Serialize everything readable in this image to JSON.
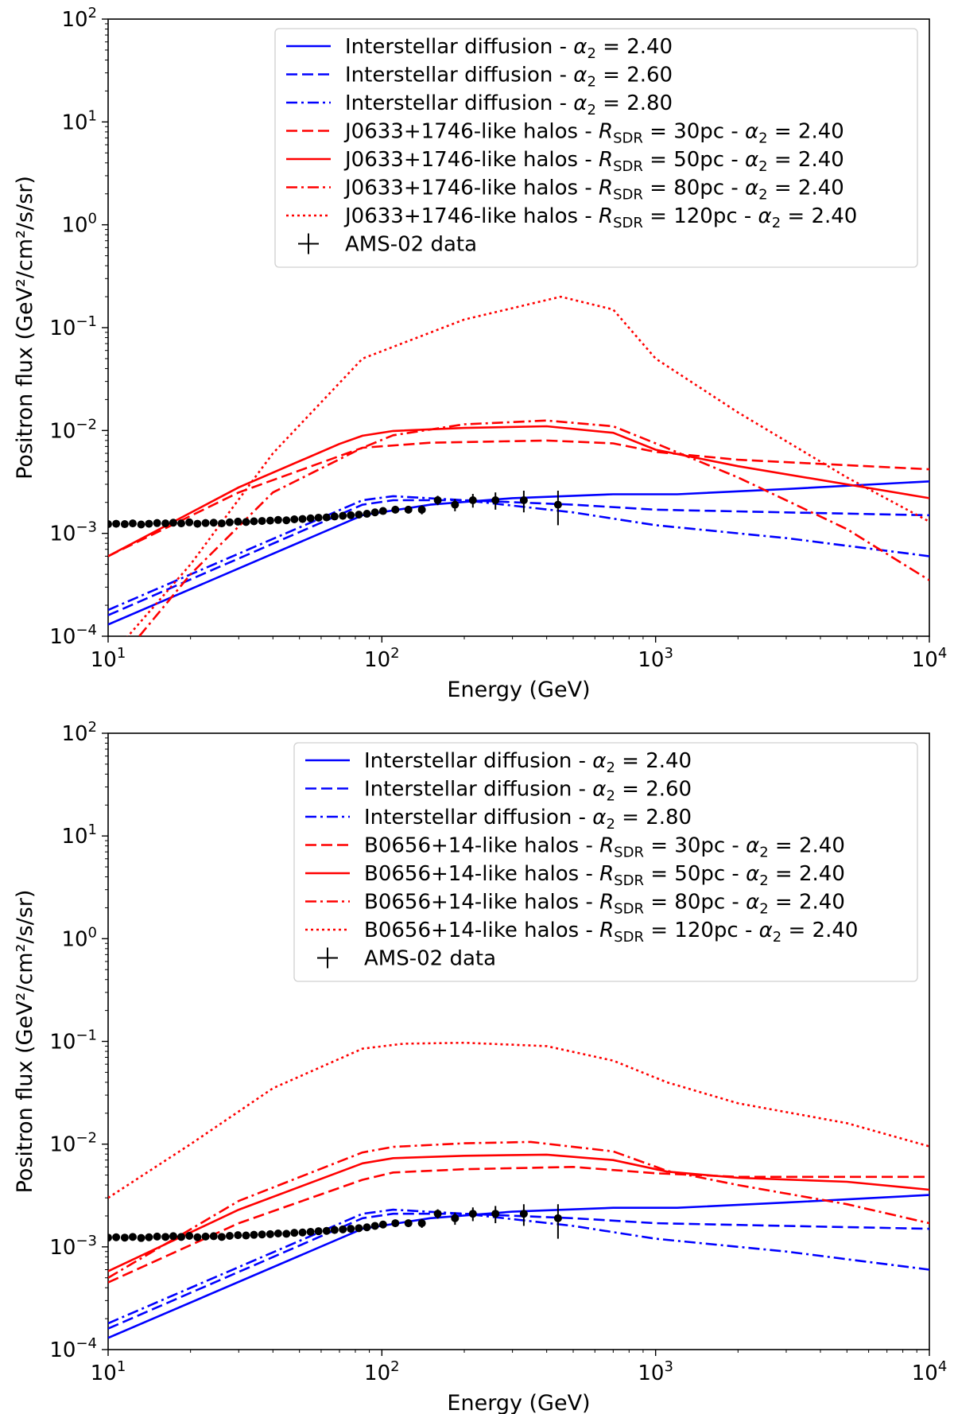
{
  "chart_data": [
    {
      "type": "line",
      "xscale": "log",
      "yscale": "log",
      "xlim": [
        10,
        10000
      ],
      "ylim": [
        0.0001,
        100
      ],
      "xlabel": "Energy (GeV)",
      "ylabel": "Positron flux (GeV²/cm²/s/sr)",
      "x_ticks": [
        {
          "value": 10,
          "base": "10",
          "exp": "1"
        },
        {
          "value": 100,
          "base": "10",
          "exp": "2"
        },
        {
          "value": 1000,
          "base": "10",
          "exp": "3"
        },
        {
          "value": 10000,
          "base": "10",
          "exp": "4"
        }
      ],
      "y_ticks": [
        {
          "value": 0.0001,
          "base": "10",
          "exp": "−4"
        },
        {
          "value": 0.001,
          "base": "10",
          "exp": "−3"
        },
        {
          "value": 0.01,
          "base": "10",
          "exp": "−2"
        },
        {
          "value": 0.1,
          "base": "10",
          "exp": "−1"
        },
        {
          "value": 1,
          "base": "10",
          "exp": "0"
        },
        {
          "value": 10,
          "base": "10",
          "exp": "1"
        },
        {
          "value": 100,
          "base": "10",
          "exp": "2"
        }
      ],
      "legend_position": "top-right",
      "series": [
        {
          "id": "isd-240",
          "prefix": "Interstellar diffusion - ",
          "sub_base": "",
          "sub": "",
          "mid": "",
          "alpha_val": "2.40",
          "color": "#0000ff",
          "style": "solid",
          "x": [
            10,
            85,
            150,
            300,
            700,
            1200,
            3000,
            10000
          ],
          "y": [
            0.00013,
            0.0015,
            0.0019,
            0.0022,
            0.0024,
            0.0024,
            0.0027,
            0.0032
          ]
        },
        {
          "id": "isd-260",
          "prefix": "Interstellar diffusion - ",
          "sub_base": "",
          "sub": "",
          "mid": "",
          "alpha_val": "2.60",
          "color": "#0000ff",
          "style": "dashed",
          "x": [
            10,
            85,
            110,
            200,
            500,
            1000,
            3000,
            10000
          ],
          "y": [
            0.00016,
            0.0019,
            0.0021,
            0.0021,
            0.0019,
            0.0017,
            0.0016,
            0.0015
          ]
        },
        {
          "id": "isd-280",
          "prefix": "Interstellar diffusion - ",
          "sub_base": "",
          "sub": "",
          "mid": "",
          "alpha_val": "2.80",
          "color": "#0000ff",
          "style": "dashdot",
          "x": [
            10,
            85,
            110,
            200,
            500,
            1000,
            3000,
            10000
          ],
          "y": [
            0.00018,
            0.0021,
            0.0023,
            0.0021,
            0.0016,
            0.0012,
            0.0009,
            0.0006
          ]
        },
        {
          "id": "halo-30",
          "prefix": "J0633+1746-like halos - ",
          "sub_base": "R",
          "sub": "SDR",
          "mid": " = 30pc - ",
          "alpha_val": "2.40",
          "color": "#ff0000",
          "style": "dashed",
          "x": [
            10,
            30,
            85,
            150,
            400,
            700,
            1000,
            2000,
            10000
          ],
          "y": [
            0.0006,
            0.0025,
            0.0068,
            0.0076,
            0.008,
            0.0075,
            0.0062,
            0.0052,
            0.0042
          ]
        },
        {
          "id": "halo-50",
          "prefix": "J0633+1746-like halos - ",
          "sub_base": "R",
          "sub": "SDR",
          "mid": " = 50pc - ",
          "alpha_val": "2.40",
          "color": "#ff0000",
          "style": "solid",
          "x": [
            10,
            30,
            70,
            85,
            110,
            200,
            400,
            700,
            1000,
            2000,
            10000
          ],
          "y": [
            0.0006,
            0.0028,
            0.0074,
            0.0089,
            0.0099,
            0.0106,
            0.011,
            0.0095,
            0.0065,
            0.0045,
            0.0022
          ]
        },
        {
          "id": "halo-80",
          "prefix": "J0633+1746-like halos - ",
          "sub_base": "R",
          "sub": "SDR",
          "mid": " = 80pc - ",
          "alpha_val": "2.40",
          "color": "#ff0000",
          "style": "dashdot",
          "x": [
            13,
            20,
            40,
            85,
            110,
            200,
            400,
            700,
            1000,
            2000,
            5000,
            10000
          ],
          "y": [
            0.0001,
            0.0004,
            0.0025,
            0.0068,
            0.009,
            0.0115,
            0.0125,
            0.011,
            0.0075,
            0.0035,
            0.0011,
            0.00035
          ]
        },
        {
          "id": "halo-120",
          "prefix": "J0633+1746-like halos - ",
          "sub_base": "R",
          "sub": "SDR",
          "mid": " = 120pc - ",
          "alpha_val": "2.40",
          "color": "#ff0000",
          "style": "dotted",
          "x": [
            10,
            20,
            40,
            85,
            200,
            450,
            700,
            1000,
            2000,
            5000,
            10000
          ],
          "y": [
            6e-05,
            0.0005,
            0.006,
            0.05,
            0.12,
            0.2,
            0.15,
            0.05,
            0.015,
            0.0035,
            0.0013
          ]
        }
      ],
      "data_series": {
        "label": "AMS-02 data",
        "x": [
          10,
          10.7,
          11.5,
          12.3,
          13.2,
          14.1,
          15.1,
          16.2,
          17.3,
          18.5,
          19.8,
          21.2,
          22.7,
          24.3,
          26,
          27.8,
          29.8,
          31.9,
          34.1,
          36.5,
          39.1,
          41.8,
          44.8,
          47.9,
          51.3,
          54.9,
          58.7,
          62.8,
          67.2,
          72,
          77,
          82.4,
          88.2,
          94.4,
          101,
          112,
          125,
          140,
          160,
          185,
          215,
          260,
          330,
          440
        ],
        "y": [
          0.00123,
          0.00124,
          0.00123,
          0.00125,
          0.00122,
          0.00124,
          0.00126,
          0.00125,
          0.00127,
          0.00125,
          0.00128,
          0.00124,
          0.00126,
          0.00127,
          0.00125,
          0.00128,
          0.0013,
          0.00129,
          0.00131,
          0.00132,
          0.00133,
          0.00135,
          0.00134,
          0.00137,
          0.00138,
          0.0014,
          0.00142,
          0.00143,
          0.00146,
          0.00148,
          0.0015,
          0.00152,
          0.00155,
          0.0016,
          0.00165,
          0.0017,
          0.0017,
          0.0017,
          0.0021,
          0.0019,
          0.0021,
          0.0021,
          0.0021,
          0.0019
        ],
        "err_lo": [
          0,
          0,
          0,
          0,
          0,
          0,
          0,
          0,
          0,
          0,
          0,
          0,
          0,
          0,
          0,
          0,
          0,
          0,
          0,
          0,
          0,
          0,
          0,
          0,
          0,
          0,
          0,
          0,
          0,
          0,
          0,
          0,
          0.0001,
          0.0001,
          0.0001,
          0.00012,
          0.00014,
          0.00017,
          0.00022,
          0.00026,
          0.00032,
          0.0004,
          0.0005,
          0.0007
        ],
        "err_hi": [
          0,
          0,
          0,
          0,
          0,
          0,
          0,
          0,
          0,
          0,
          0,
          0,
          0,
          0,
          0,
          0,
          0,
          0,
          0,
          0,
          0,
          0,
          0,
          0,
          0,
          0,
          0,
          0,
          0,
          0,
          0,
          0,
          0.0001,
          0.0001,
          0.0001,
          0.00012,
          0.00014,
          0.00017,
          0.00022,
          0.00026,
          0.00032,
          0.0004,
          0.0005,
          0.0007
        ]
      }
    },
    {
      "type": "line",
      "xscale": "log",
      "yscale": "log",
      "xlim": [
        10,
        10000
      ],
      "ylim": [
        0.0001,
        100
      ],
      "xlabel": "Energy (GeV)",
      "ylabel": "Positron flux (GeV²/cm²/s/sr)",
      "x_ticks": [
        {
          "value": 10,
          "base": "10",
          "exp": "1"
        },
        {
          "value": 100,
          "base": "10",
          "exp": "2"
        },
        {
          "value": 1000,
          "base": "10",
          "exp": "3"
        },
        {
          "value": 10000,
          "base": "10",
          "exp": "4"
        }
      ],
      "y_ticks": [
        {
          "value": 0.0001,
          "base": "10",
          "exp": "−4"
        },
        {
          "value": 0.001,
          "base": "10",
          "exp": "−3"
        },
        {
          "value": 0.01,
          "base": "10",
          "exp": "−2"
        },
        {
          "value": 0.1,
          "base": "10",
          "exp": "−1"
        },
        {
          "value": 1,
          "base": "10",
          "exp": "0"
        },
        {
          "value": 10,
          "base": "10",
          "exp": "1"
        },
        {
          "value": 100,
          "base": "10",
          "exp": "2"
        }
      ],
      "legend_position": "top-right",
      "series": [
        {
          "id": "isd-240",
          "prefix": "Interstellar diffusion - ",
          "sub_base": "",
          "sub": "",
          "mid": "",
          "alpha_val": "2.40",
          "color": "#0000ff",
          "style": "solid",
          "x": [
            10,
            85,
            150,
            300,
            700,
            1200,
            3000,
            10000
          ],
          "y": [
            0.00013,
            0.0015,
            0.0019,
            0.0022,
            0.0024,
            0.0024,
            0.0027,
            0.0032
          ]
        },
        {
          "id": "isd-260",
          "prefix": "Interstellar diffusion - ",
          "sub_base": "",
          "sub": "",
          "mid": "",
          "alpha_val": "2.60",
          "color": "#0000ff",
          "style": "dashed",
          "x": [
            10,
            85,
            110,
            200,
            500,
            1000,
            3000,
            10000
          ],
          "y": [
            0.00016,
            0.0019,
            0.0021,
            0.0021,
            0.0019,
            0.0017,
            0.0016,
            0.0015
          ]
        },
        {
          "id": "isd-280",
          "prefix": "Interstellar diffusion - ",
          "sub_base": "",
          "sub": "",
          "mid": "",
          "alpha_val": "2.80",
          "color": "#0000ff",
          "style": "dashdot",
          "x": [
            10,
            85,
            110,
            200,
            500,
            1000,
            3000,
            10000
          ],
          "y": [
            0.00018,
            0.0021,
            0.0023,
            0.0021,
            0.0016,
            0.0012,
            0.0009,
            0.0006
          ]
        },
        {
          "id": "halo-30",
          "prefix": "B0656+14-like halos - ",
          "sub_base": "R",
          "sub": "SDR",
          "mid": " = 30pc - ",
          "alpha_val": "2.40",
          "color": "#ff0000",
          "style": "dashed",
          "x": [
            10,
            30,
            85,
            110,
            200,
            500,
            1000,
            2000,
            10000
          ],
          "y": [
            0.00045,
            0.0017,
            0.0045,
            0.0053,
            0.0057,
            0.006,
            0.0052,
            0.0048,
            0.0048
          ]
        },
        {
          "id": "halo-50",
          "prefix": "B0656+14-like halos - ",
          "sub_base": "R",
          "sub": "SDR",
          "mid": " = 50pc - ",
          "alpha_val": "2.40",
          "color": "#ff0000",
          "style": "solid",
          "x": [
            10,
            30,
            85,
            110,
            200,
            400,
            700,
            1100,
            2000,
            5000,
            10000
          ],
          "y": [
            0.00058,
            0.0023,
            0.0065,
            0.0073,
            0.0077,
            0.0079,
            0.007,
            0.0054,
            0.0047,
            0.0043,
            0.0036
          ]
        },
        {
          "id": "halo-80",
          "prefix": "B0656+14-like halos - ",
          "sub_base": "R",
          "sub": "SDR",
          "mid": " = 80pc - ",
          "alpha_val": "2.40",
          "color": "#ff0000",
          "style": "dashdot",
          "x": [
            10,
            30,
            85,
            110,
            200,
            350,
            700,
            1100,
            2000,
            5000,
            10000
          ],
          "y": [
            0.0005,
            0.0028,
            0.0083,
            0.0094,
            0.0102,
            0.0105,
            0.0085,
            0.0055,
            0.004,
            0.0026,
            0.0017
          ]
        },
        {
          "id": "halo-120",
          "prefix": "B0656+14-like halos - ",
          "sub_base": "R",
          "sub": "SDR",
          "mid": " = 120pc - ",
          "alpha_val": "2.40",
          "color": "#ff0000",
          "style": "dotted",
          "x": [
            10,
            20,
            40,
            85,
            120,
            200,
            400,
            700,
            1100,
            2000,
            5000,
            10000
          ],
          "y": [
            0.003,
            0.01,
            0.035,
            0.085,
            0.095,
            0.097,
            0.09,
            0.065,
            0.04,
            0.025,
            0.016,
            0.0095
          ]
        }
      ],
      "data_series": {
        "label": "AMS-02 data",
        "x": [
          10,
          10.7,
          11.5,
          12.3,
          13.2,
          14.1,
          15.1,
          16.2,
          17.3,
          18.5,
          19.8,
          21.2,
          22.7,
          24.3,
          26,
          27.8,
          29.8,
          31.9,
          34.1,
          36.5,
          39.1,
          41.8,
          44.8,
          47.9,
          51.3,
          54.9,
          58.7,
          62.8,
          67.2,
          72,
          77,
          82.4,
          88.2,
          94.4,
          101,
          112,
          125,
          140,
          160,
          185,
          215,
          260,
          330,
          440
        ],
        "y": [
          0.00123,
          0.00124,
          0.00123,
          0.00125,
          0.00122,
          0.00124,
          0.00126,
          0.00125,
          0.00127,
          0.00125,
          0.00128,
          0.00124,
          0.00126,
          0.00127,
          0.00125,
          0.00128,
          0.0013,
          0.00129,
          0.00131,
          0.00132,
          0.00133,
          0.00135,
          0.00134,
          0.00137,
          0.00138,
          0.0014,
          0.00142,
          0.00143,
          0.00146,
          0.00148,
          0.0015,
          0.00152,
          0.00155,
          0.0016,
          0.00165,
          0.0017,
          0.0017,
          0.0017,
          0.0021,
          0.0019,
          0.0021,
          0.0021,
          0.0021,
          0.0019
        ],
        "err_lo": [
          0,
          0,
          0,
          0,
          0,
          0,
          0,
          0,
          0,
          0,
          0,
          0,
          0,
          0,
          0,
          0,
          0,
          0,
          0,
          0,
          0,
          0,
          0,
          0,
          0,
          0,
          0,
          0,
          0,
          0,
          0,
          0,
          0.0001,
          0.0001,
          0.0001,
          0.00012,
          0.00014,
          0.00017,
          0.00022,
          0.00026,
          0.00032,
          0.0004,
          0.0005,
          0.0007
        ],
        "err_hi": [
          0,
          0,
          0,
          0,
          0,
          0,
          0,
          0,
          0,
          0,
          0,
          0,
          0,
          0,
          0,
          0,
          0,
          0,
          0,
          0,
          0,
          0,
          0,
          0,
          0,
          0,
          0,
          0,
          0,
          0,
          0,
          0,
          0.0001,
          0.0001,
          0.0001,
          0.00012,
          0.00014,
          0.00017,
          0.00022,
          0.00026,
          0.00032,
          0.0004,
          0.0005,
          0.0007
        ]
      }
    }
  ]
}
